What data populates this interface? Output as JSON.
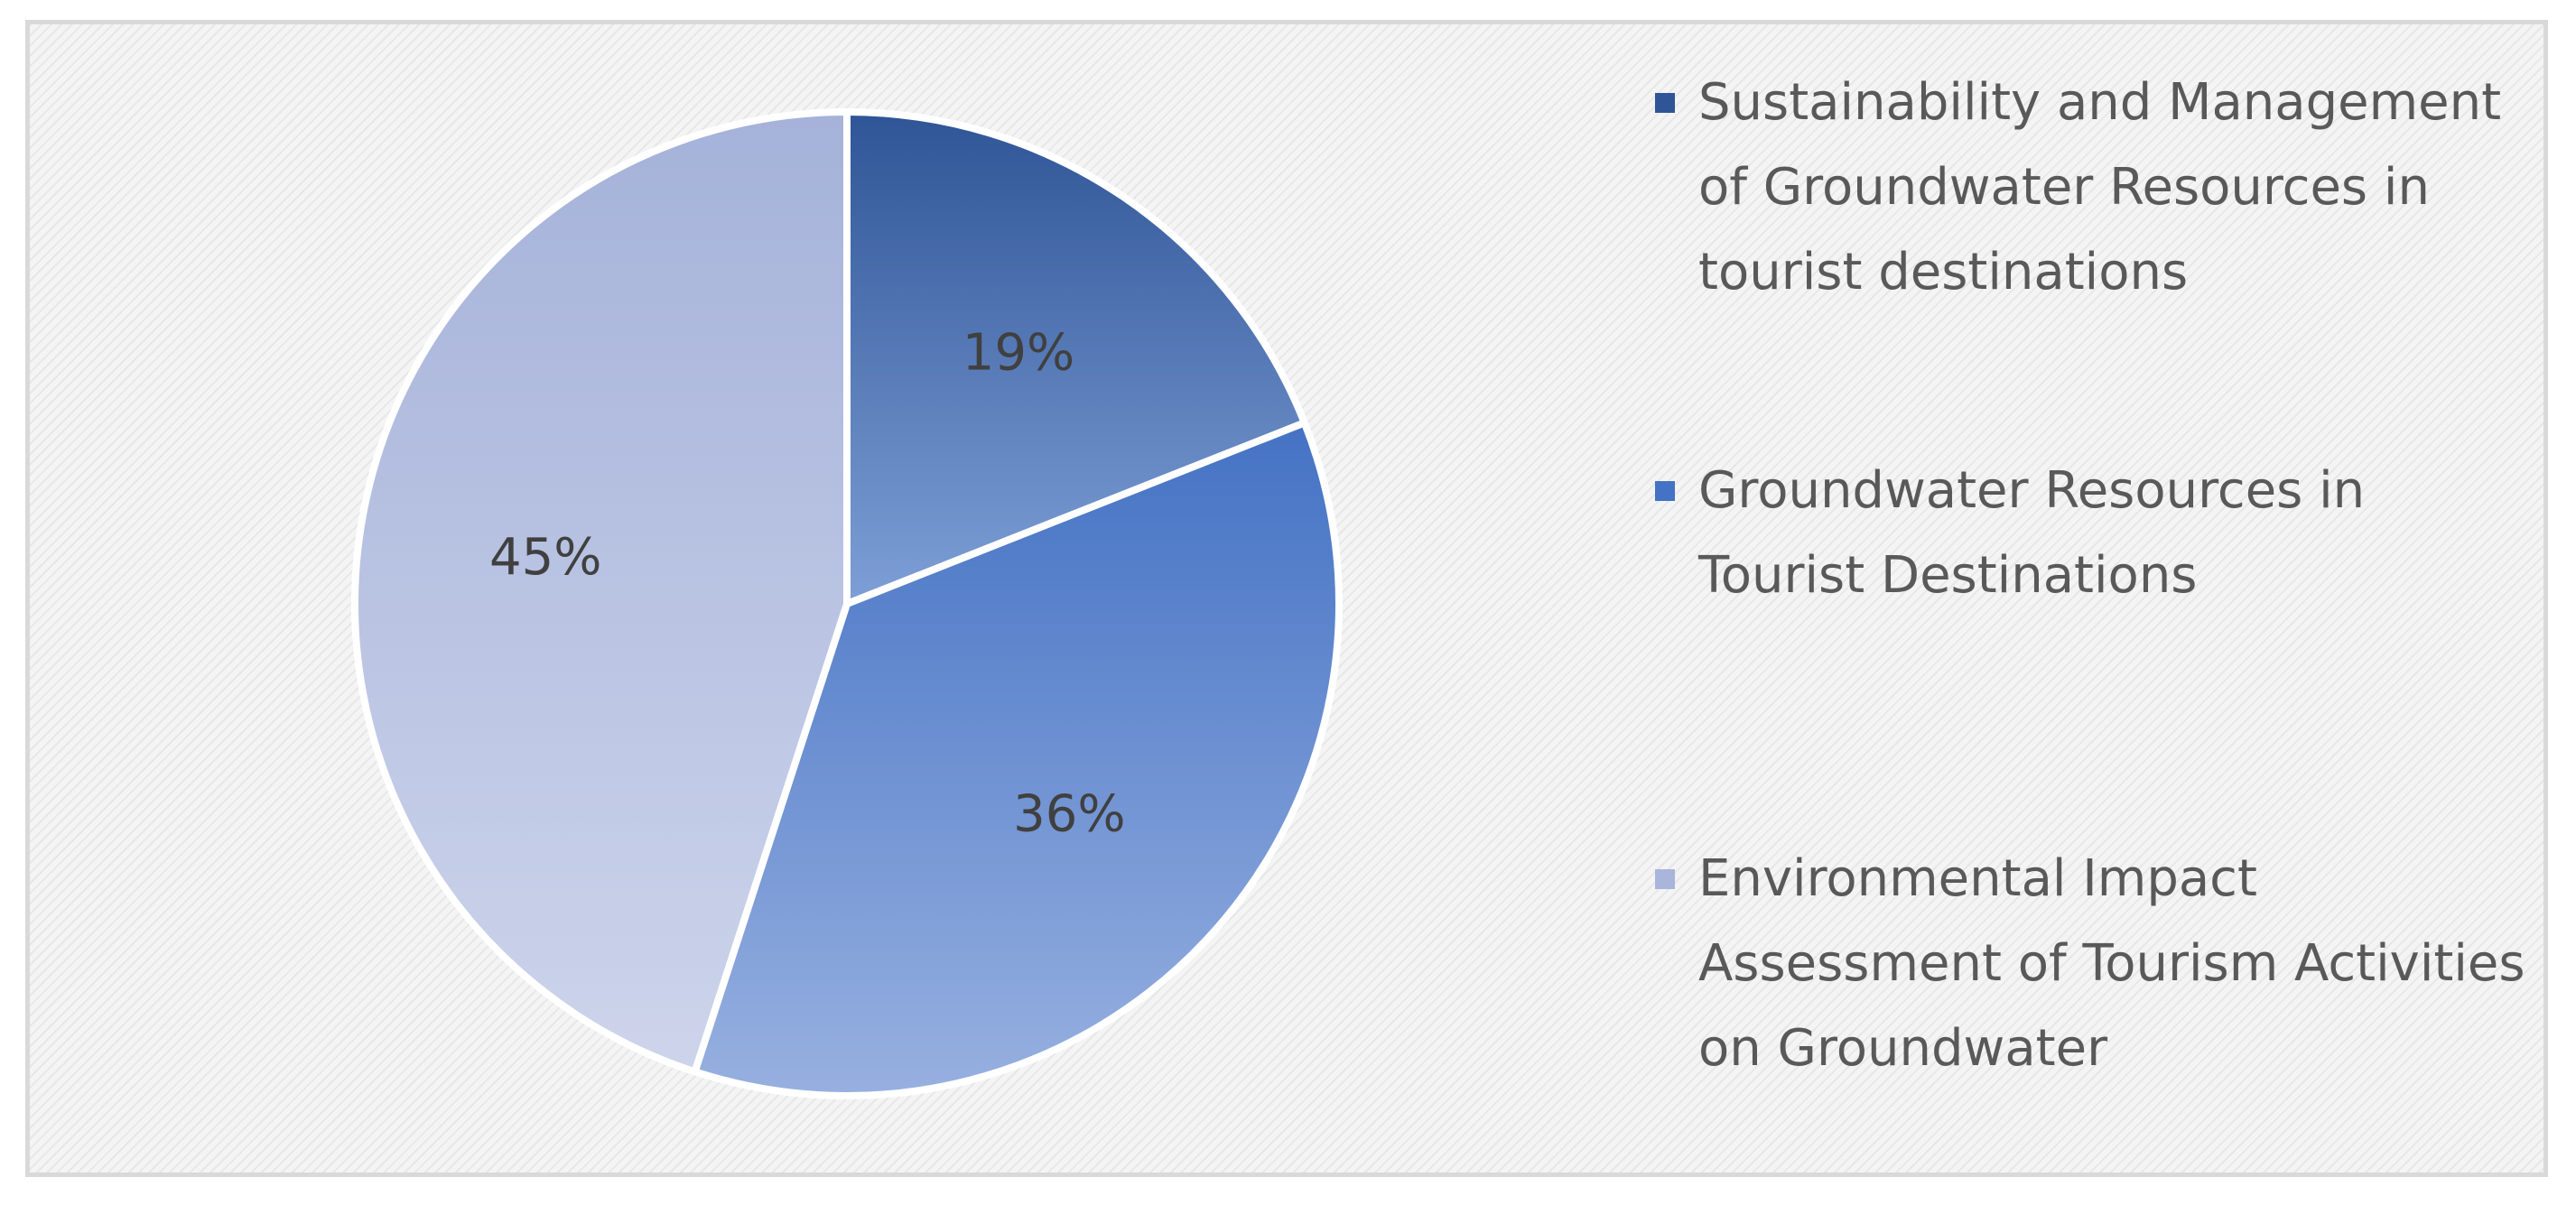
{
  "chart_data": {
    "type": "pie",
    "categories": [
      "Sustainability and Management of Groundwater Resources in tourist destinations",
      "Groundwater Resources in Tourist Destinations",
      "Environmental Impact Assessment of Tourism Activities on Groundwater"
    ],
    "values": [
      19,
      36,
      45
    ],
    "data_labels": [
      "19%",
      "36%",
      "45%"
    ],
    "colors": [
      "#2f5597",
      "#4472c4",
      "#a9b5da"
    ],
    "legend_position": "right",
    "title": ""
  }
}
